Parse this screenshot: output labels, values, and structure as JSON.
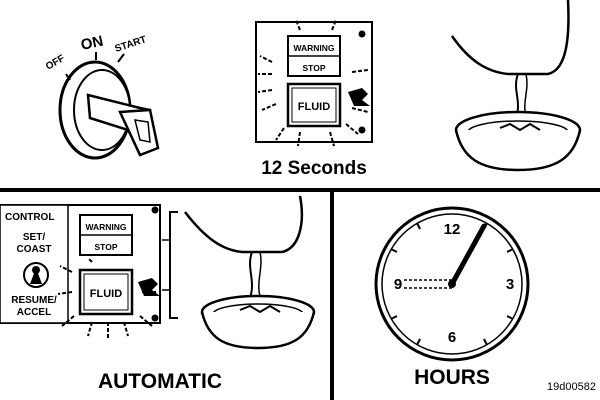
{
  "ignition": {
    "off": "OFF",
    "on": "ON",
    "start": "START"
  },
  "panel_top": {
    "warning": "WARNING",
    "stop": "STOP",
    "fluid": "FLUID"
  },
  "top_caption": "12 Seconds",
  "panel_bottom": {
    "control": "CONTROL",
    "set_coast": [
      "SET/",
      "COAST"
    ],
    "resume_accel": [
      "RESUME/",
      "ACCEL"
    ],
    "warning": "WARNING",
    "stop": "STOP",
    "fluid": "FLUID"
  },
  "bottom_left_caption": "AUTOMATIC",
  "clock": {
    "n12": "12",
    "n3": "3",
    "n6": "6",
    "n9": "9"
  },
  "bottom_right_caption": "HOURS",
  "figure_id": "19d00582"
}
